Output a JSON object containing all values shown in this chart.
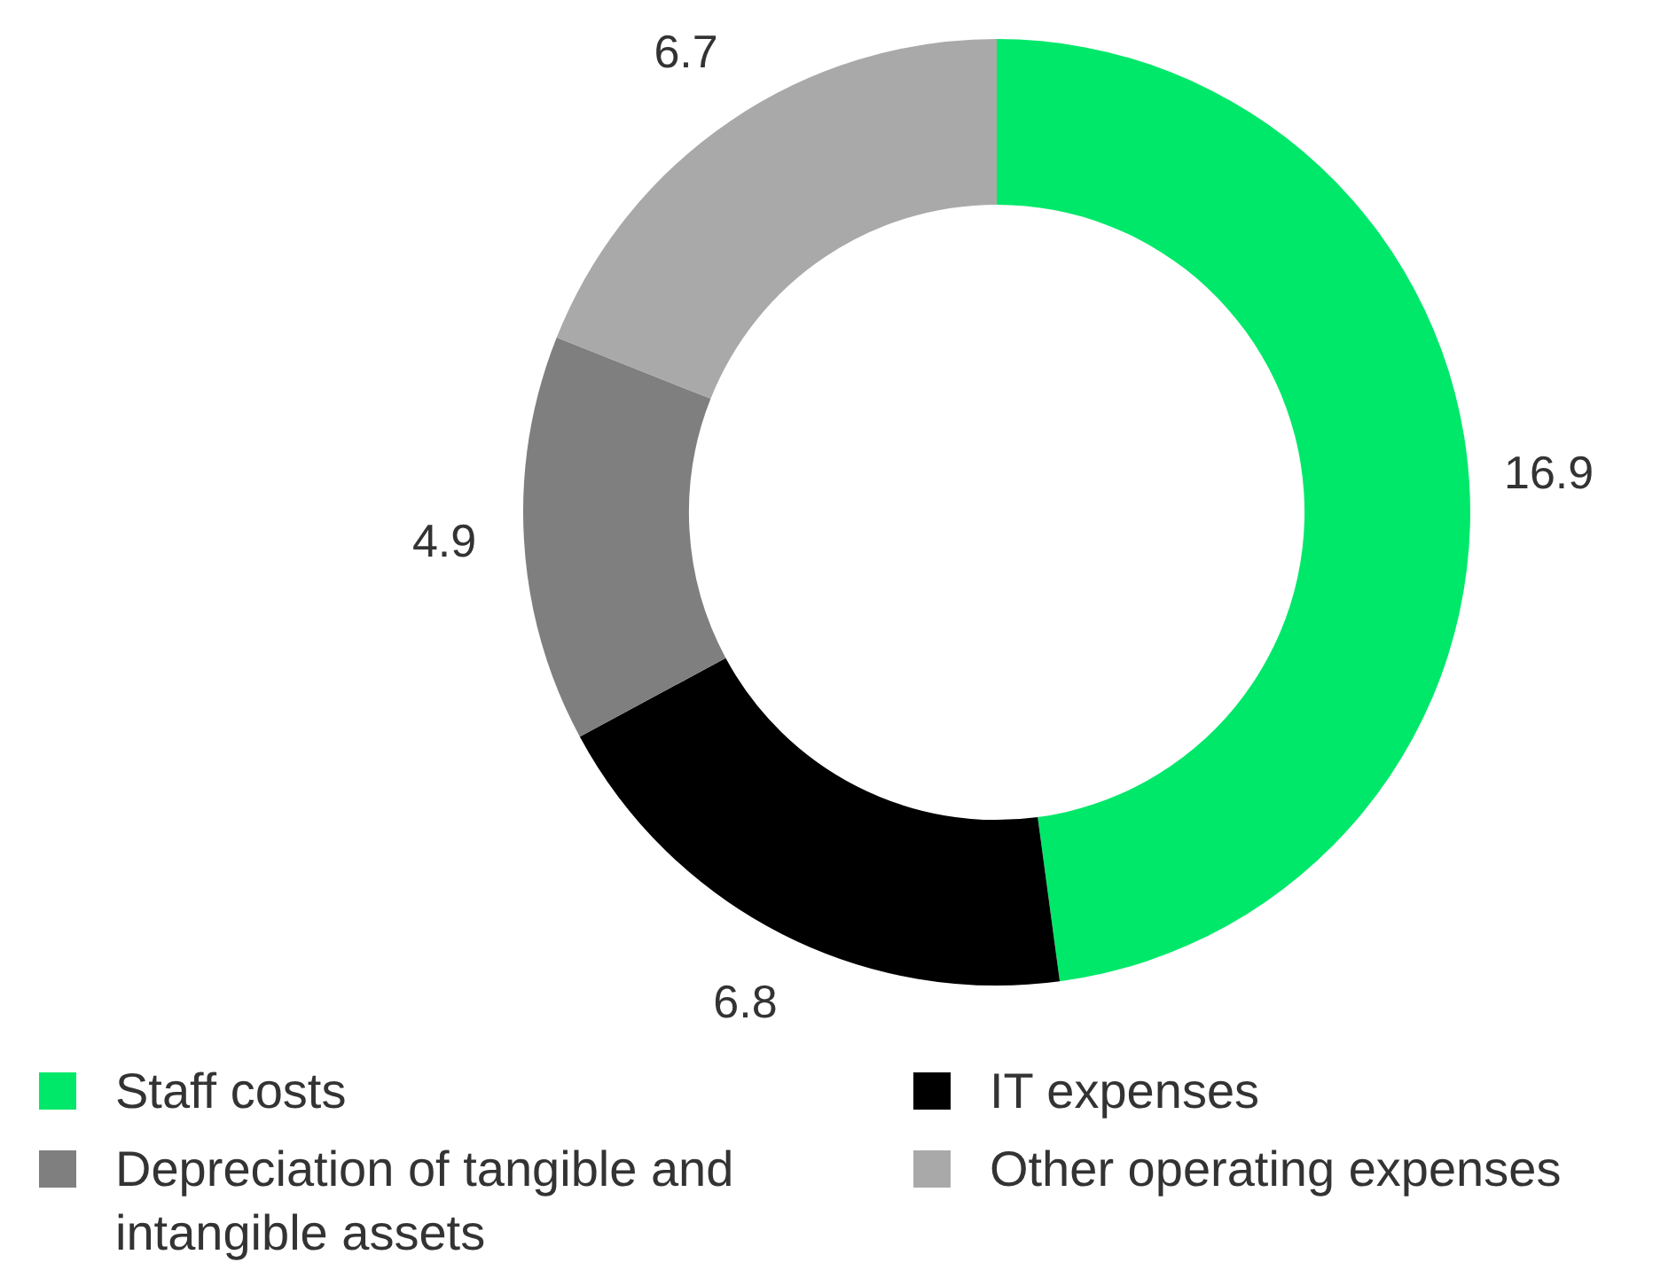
{
  "chart_data": {
    "type": "donut",
    "categories": [
      "Staff costs",
      "IT expenses",
      "Depreciation of tangible and intangible assets",
      "Other operating expenses"
    ],
    "values": [
      16.9,
      6.8,
      4.9,
      6.7
    ],
    "colors": [
      "#00e86a",
      "#000000",
      "#7f7f7f",
      "#a9a9a9"
    ],
    "data_labels": true,
    "legend": "bottom"
  }
}
